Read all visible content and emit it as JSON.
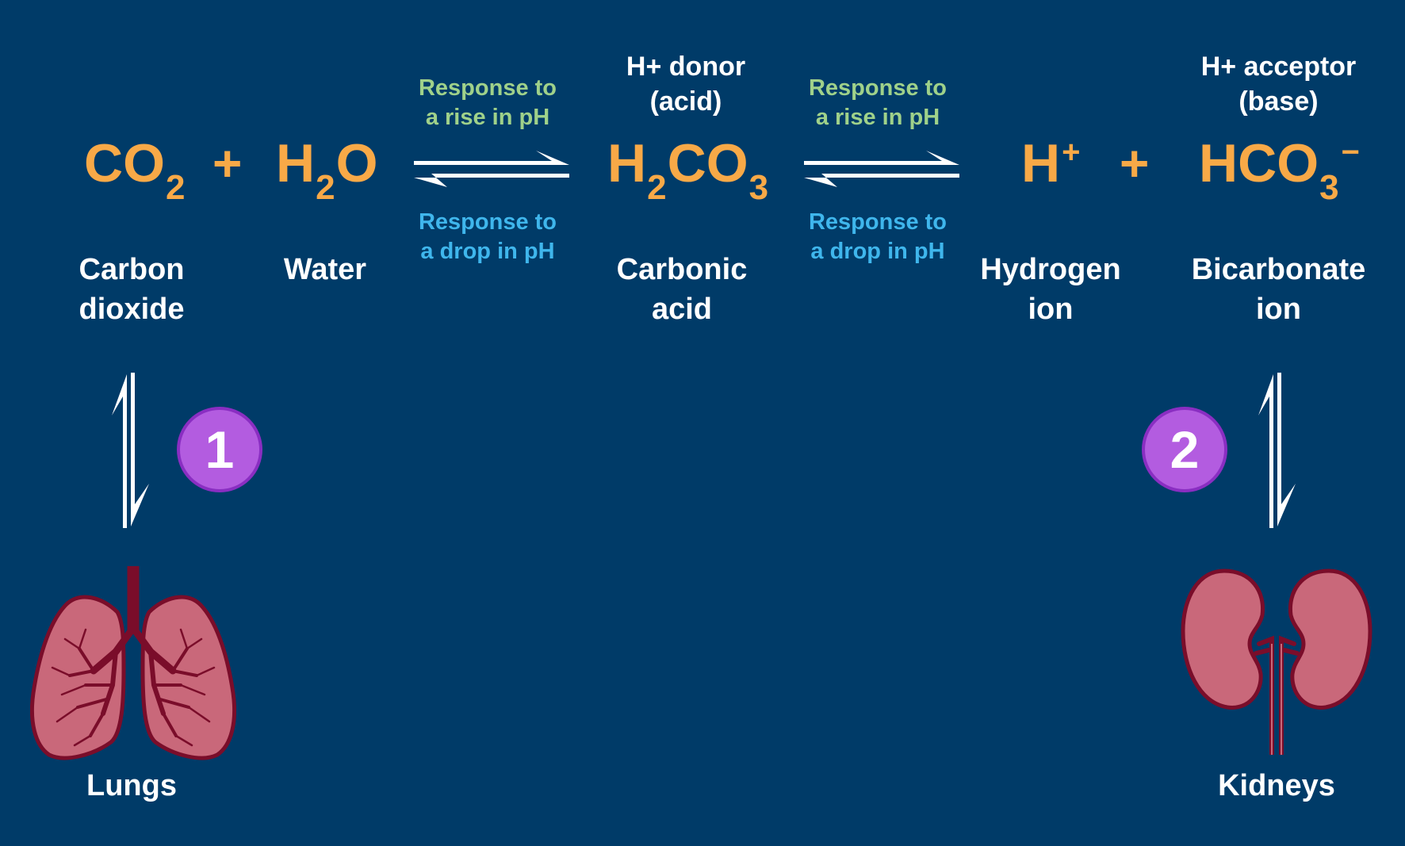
{
  "reaction": {
    "co2": {
      "main": "CO",
      "sub": "2",
      "name_line1": "Carbon",
      "name_line2": "dioxide"
    },
    "plus1": "+",
    "h2o": {
      "h": "H",
      "sub": "2",
      "o": "O",
      "name": "Water"
    },
    "arrow1": {
      "rise_line1": "Response to",
      "rise_line2": "a rise in pH",
      "drop_line1": "Response to",
      "drop_line2": "a drop in pH"
    },
    "h2co3": {
      "h": "H",
      "sub2": "2",
      "co": "CO",
      "sub3": "3",
      "role_sup": "H+",
      "role_word": "donor",
      "role_line2": "(acid)",
      "name_line1": "Carbonic",
      "name_line2": "acid"
    },
    "arrow2": {
      "rise_line1": "Response to",
      "rise_line2": "a rise in pH",
      "drop_line1": "Response to",
      "drop_line2": "a drop in pH"
    },
    "hplus": {
      "h": "H",
      "sup": "+",
      "name_line1": "Hydrogen",
      "name_line2": "ion"
    },
    "plus2": "+",
    "hco3": {
      "hco": "HCO",
      "sub": "3",
      "sup": "−",
      "role_sup": "H+",
      "role_word": "acceptor",
      "role_line2": "(base)",
      "name_line1": "Bicarbonate",
      "name_line2": "ion"
    }
  },
  "organs": {
    "lungs": {
      "badge": "1",
      "label": "Lungs",
      "icon": "lungs-icon"
    },
    "kidneys": {
      "badge": "2",
      "label": "Kidneys",
      "icon": "kidneys-icon"
    }
  },
  "colors": {
    "background": "#003b68",
    "formula": "#f8a947",
    "rise": "#9fd18a",
    "drop": "#3fb6ec",
    "badge": "#b35ce0",
    "organ_fill": "#c9687a",
    "organ_stroke": "#7a0d2a"
  }
}
